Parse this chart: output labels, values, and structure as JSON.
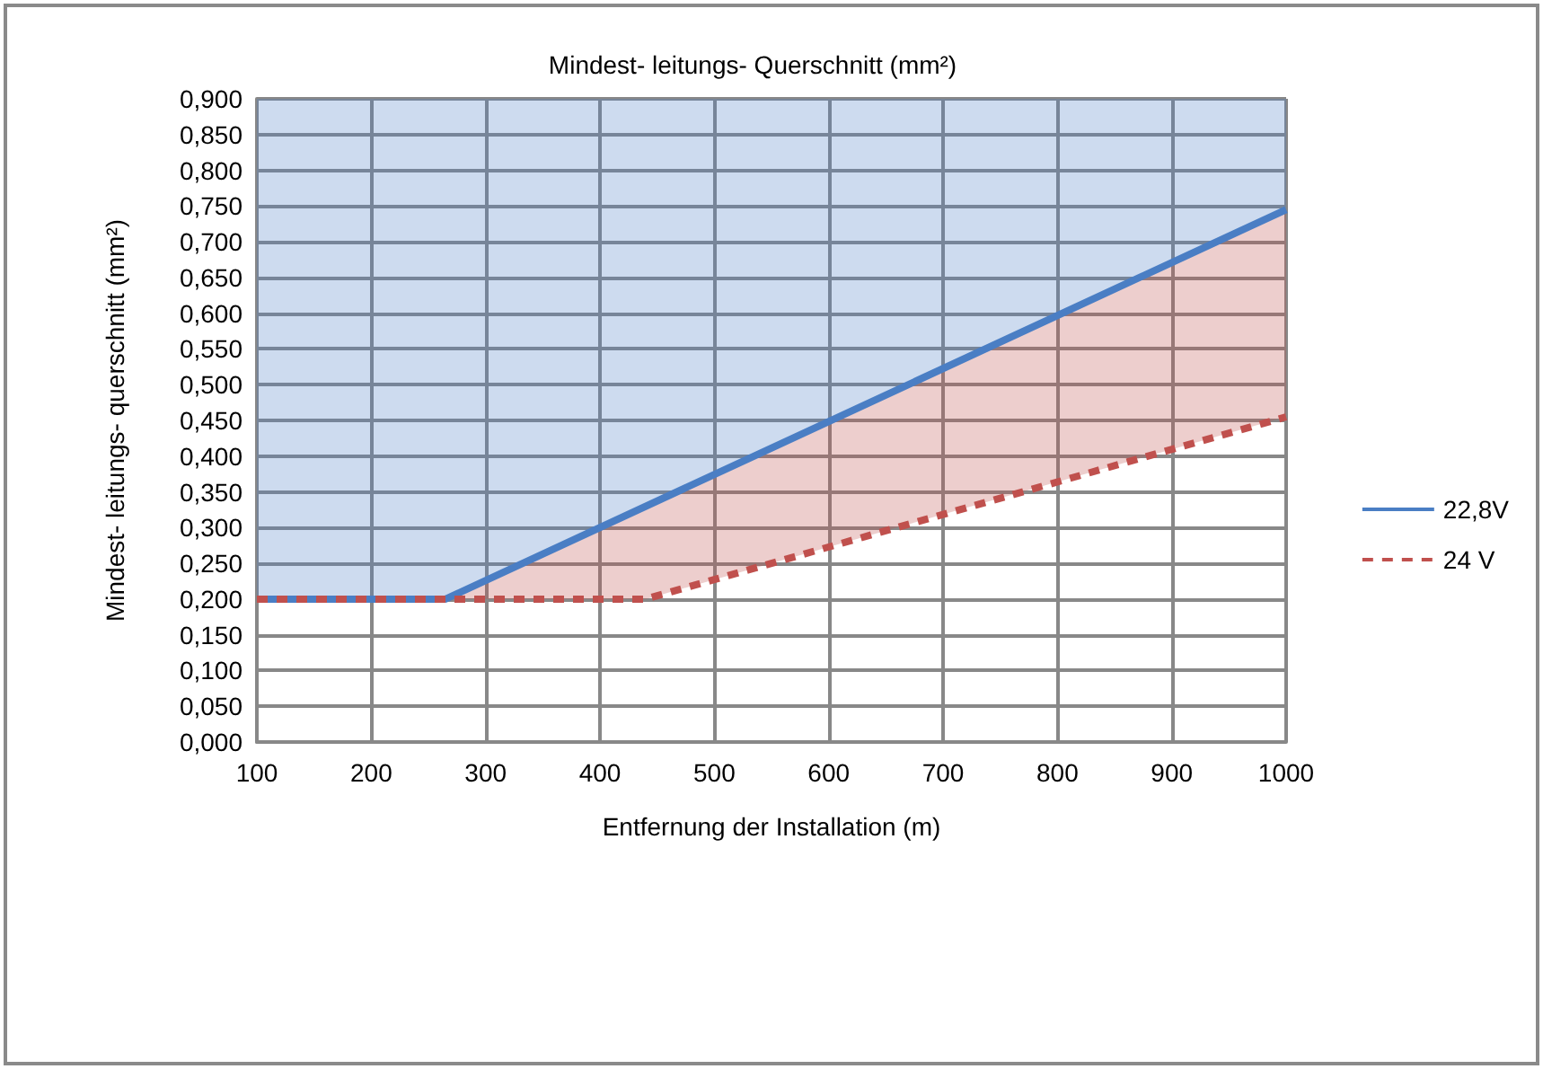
{
  "chart_data": {
    "type": "line",
    "title": "Mindest- leitungs- Querschnitt (mm²)",
    "xlabel": "Entfernung der Installation (m)",
    "ylabel": "Mindest- leitungs- querschnitt (mm²)",
    "xlim": [
      100,
      1000
    ],
    "xticks": [
      100,
      200,
      300,
      400,
      500,
      600,
      700,
      800,
      900,
      1000
    ],
    "ylim": [
      0,
      0.9
    ],
    "yticks": [
      {
        "value": 0,
        "label": "0,000"
      },
      {
        "value": 0.05,
        "label": "0,050"
      },
      {
        "value": 0.1,
        "label": "0,100"
      },
      {
        "value": 0.15,
        "label": "0,150"
      },
      {
        "value": 0.2,
        "label": "0,200"
      },
      {
        "value": 0.25,
        "label": "0,250"
      },
      {
        "value": 0.3,
        "label": "0,300"
      },
      {
        "value": 0.35,
        "label": "0,350"
      },
      {
        "value": 0.4,
        "label": "0,400"
      },
      {
        "value": 0.45,
        "label": "0,450"
      },
      {
        "value": 0.5,
        "label": "0,500"
      },
      {
        "value": 0.55,
        "label": "0,550"
      },
      {
        "value": 0.6,
        "label": "0,600"
      },
      {
        "value": 0.65,
        "label": "0,650"
      },
      {
        "value": 0.7,
        "label": "0,700"
      },
      {
        "value": 0.75,
        "label": "0,750"
      },
      {
        "value": 0.8,
        "label": "0,800"
      },
      {
        "value": 0.85,
        "label": "0,850"
      },
      {
        "value": 0.9,
        "label": "0,900"
      }
    ],
    "grid": true,
    "legend": "right",
    "marker": "none",
    "series": [
      {
        "name": "22,8V",
        "color": "#4a7ec4",
        "line_style": "solid",
        "x": [
          100,
          265,
          1000
        ],
        "values": [
          0.2,
          0.2,
          0.745
        ],
        "lower": [
          0.2,
          0.2,
          0.745
        ],
        "upper": [
          0.9,
          0.9,
          0.9
        ]
      },
      {
        "name": "24 V",
        "color": "#c0504d",
        "line_style": "dashed",
        "x": [
          100,
          265,
          440,
          1000
        ],
        "values": [
          0.2,
          0.2,
          0.2,
          0.455
        ],
        "lower": [
          0.2,
          0.2,
          0.2,
          0.455
        ],
        "upper": [
          0.2,
          0.2,
          0.33,
          0.745
        ]
      }
    ]
  }
}
